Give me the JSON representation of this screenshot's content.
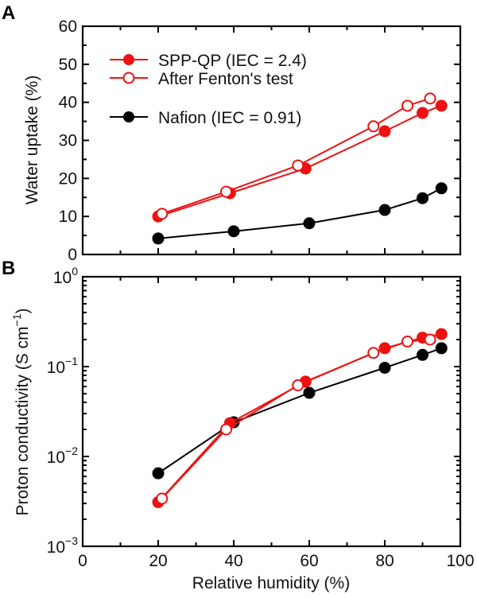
{
  "chart_data": [
    {
      "type": "line",
      "panel_label": "A",
      "title": "",
      "xlabel": "Relative humidity (%)",
      "ylabel": "Water uptake (%)",
      "xlim": [
        0,
        100
      ],
      "ylim": [
        0,
        60
      ],
      "x_ticks": [
        0,
        20,
        40,
        60,
        80,
        100
      ],
      "y_ticks": [
        0,
        10,
        20,
        30,
        40,
        50,
        60
      ],
      "y_tick_labels": [
        "0",
        "10",
        "20",
        "30",
        "40",
        "50",
        "60"
      ],
      "grid": false,
      "legend_position": "top-left",
      "series": [
        {
          "name": "SPP-QP (IEC = 2.4)",
          "marker": "filled-circle",
          "color": "#ee1111",
          "x": [
            20,
            39,
            59,
            80,
            90,
            95
          ],
          "y": [
            10.0,
            16.1,
            22.6,
            32.4,
            37.2,
            39.1
          ]
        },
        {
          "name": "After Fenton's test",
          "marker": "open-circle",
          "color": "#ee1111",
          "x": [
            21,
            38,
            57,
            77,
            86,
            92
          ],
          "y": [
            10.7,
            16.5,
            23.4,
            33.7,
            39.1,
            41.0
          ]
        },
        {
          "name": "Nafion (IEC = 0.91)",
          "marker": "filled-circle",
          "color": "#000000",
          "x": [
            20,
            40,
            60,
            80,
            90,
            95
          ],
          "y": [
            4.2,
            6.1,
            8.2,
            11.7,
            14.8,
            17.4
          ]
        }
      ]
    },
    {
      "type": "line",
      "panel_label": "B",
      "title": "",
      "xlabel": "Relative humidity (%)",
      "ylabel": "Proton conductivity (S cm",
      "ylabel_sup": "−1",
      "ylabel_close": ")",
      "xlim": [
        0,
        100
      ],
      "ylim": [
        0.001,
        1
      ],
      "y_scale": "log",
      "x_ticks": [
        0,
        20,
        40,
        60,
        80,
        100
      ],
      "x_tick_labels": [
        "0",
        "20",
        "40",
        "60",
        "80",
        "100"
      ],
      "y_ticks": [
        1,
        0.1,
        0.01,
        0.001
      ],
      "y_tick_labels": [
        {
          "base": "10",
          "exp": "0"
        },
        {
          "base": "10",
          "exp": "−1"
        },
        {
          "base": "10",
          "exp": "−2"
        },
        {
          "base": "10",
          "exp": "−3"
        }
      ],
      "grid": false,
      "series": [
        {
          "name": "SPP-QP (IEC = 2.4)",
          "marker": "filled-circle",
          "color": "#ee1111",
          "x": [
            20,
            39,
            59,
            80,
            90,
            95
          ],
          "y": [
            0.0031,
            0.0235,
            0.068,
            0.16,
            0.21,
            0.23
          ]
        },
        {
          "name": "After Fenton's test",
          "marker": "open-circle",
          "color": "#ee1111",
          "x": [
            21,
            38,
            57,
            77,
            86,
            92
          ],
          "y": [
            0.0034,
            0.02,
            0.062,
            0.142,
            0.19,
            0.2
          ]
        },
        {
          "name": "Nafion (IEC = 0.91)",
          "marker": "filled-circle",
          "color": "#000000",
          "x": [
            20,
            40,
            60,
            80,
            90,
            95
          ],
          "y": [
            0.0065,
            0.024,
            0.051,
            0.097,
            0.135,
            0.16
          ]
        }
      ]
    }
  ]
}
